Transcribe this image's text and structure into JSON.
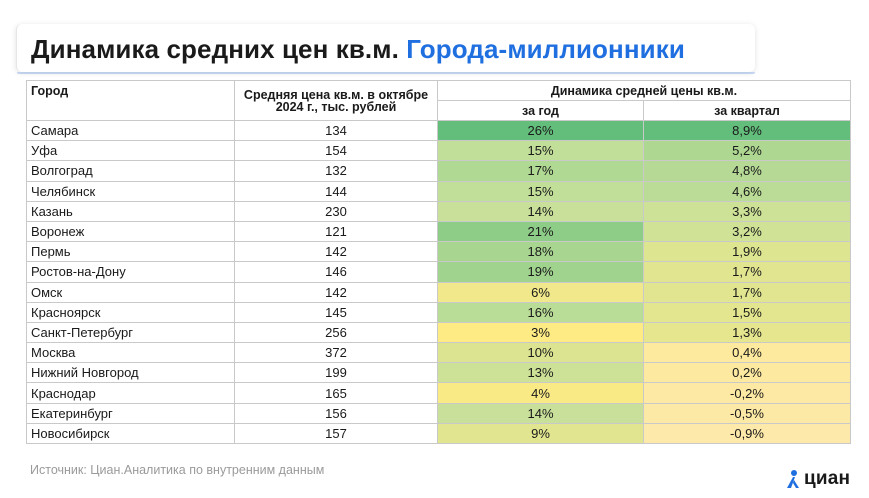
{
  "title": {
    "main": "Динамика средних цен кв.м.",
    "highlight": "Городa-миллионники"
  },
  "colors": {
    "accent": "#1f6fe0",
    "heat_high": "#63be7b",
    "heat_mid": "#c6e09a",
    "heat_low": "#ffeb84",
    "heat_min": "#fde9a9"
  },
  "table": {
    "headers": {
      "city": "Город",
      "price": "Средняя цена кв.м. в октябре 2024 г., тыс. рублей",
      "dynamics": "Динамика средней цены кв.м.",
      "year": "за год",
      "quarter": "за квартал"
    },
    "rows": [
      {
        "city": "Самара",
        "price": "134",
        "year": "26%",
        "quarter": "8,9%"
      },
      {
        "city": "Уфа",
        "price": "154",
        "year": "15%",
        "quarter": "5,2%"
      },
      {
        "city": "Волгоград",
        "price": "132",
        "year": "17%",
        "quarter": "4,8%"
      },
      {
        "city": "Челябинск",
        "price": "144",
        "year": "15%",
        "quarter": "4,6%"
      },
      {
        "city": "Казань",
        "price": "230",
        "year": "14%",
        "quarter": "3,3%"
      },
      {
        "city": "Воронеж",
        "price": "121",
        "year": "21%",
        "quarter": "3,2%"
      },
      {
        "city": "Пермь",
        "price": "142",
        "year": "18%",
        "quarter": "1,9%"
      },
      {
        "city": "Ростов-на-Дону",
        "price": "146",
        "year": "19%",
        "quarter": "1,7%"
      },
      {
        "city": "Омск",
        "price": "142",
        "year": "6%",
        "quarter": "1,7%"
      },
      {
        "city": "Красноярск",
        "price": "145",
        "year": "16%",
        "quarter": "1,5%"
      },
      {
        "city": "Санкт-Петербург",
        "price": "256",
        "year": "3%",
        "quarter": "1,3%"
      },
      {
        "city": "Москва",
        "price": "372",
        "year": "10%",
        "quarter": "0,4%"
      },
      {
        "city": "Нижний Новгород",
        "price": "199",
        "year": "13%",
        "quarter": "0,2%"
      },
      {
        "city": "Краснодар",
        "price": "165",
        "year": "4%",
        "quarter": "-0,2%"
      },
      {
        "city": "Екатеринбург",
        "price": "156",
        "year": "14%",
        "quarter": "-0,5%"
      },
      {
        "city": "Новосибирск",
        "price": "157",
        "year": "9%",
        "quarter": "-0,9%"
      }
    ]
  },
  "chart_data": {
    "type": "table",
    "columns": [
      "Город",
      "Средняя цена кв.м. в октябре 2024 г., тыс. рублей",
      "за год",
      "за квартал"
    ],
    "categories": [
      "Самара",
      "Уфа",
      "Волгоград",
      "Челябинск",
      "Казань",
      "Воронеж",
      "Пермь",
      "Ростов-на-Дону",
      "Омск",
      "Красноярск",
      "Санкт-Петербург",
      "Москва",
      "Нижний Новгород",
      "Краснодар",
      "Екатеринбург",
      "Новосибирск"
    ],
    "series": [
      {
        "name": "Средняя цена кв.м. в октябре 2024 г., тыс. рублей",
        "values": [
          134,
          154,
          132,
          144,
          230,
          121,
          142,
          146,
          142,
          145,
          256,
          372,
          199,
          165,
          156,
          157
        ]
      },
      {
        "name": "за год",
        "values": [
          26,
          15,
          17,
          15,
          14,
          21,
          18,
          19,
          6,
          16,
          3,
          10,
          13,
          4,
          14,
          9
        ]
      },
      {
        "name": "за квартал",
        "values": [
          8.9,
          5.2,
          4.8,
          4.6,
          3.3,
          3.2,
          1.9,
          1.7,
          1.7,
          1.5,
          1.3,
          0.4,
          0.2,
          -0.2,
          -0.5,
          -0.9
        ]
      }
    ],
    "year_range": [
      3,
      26
    ],
    "quarter_range": [
      -0.9,
      8.9
    ]
  },
  "footer": {
    "source": "Источник: Циан.Аналитика по внутренним данным",
    "logo_text": "циан"
  }
}
